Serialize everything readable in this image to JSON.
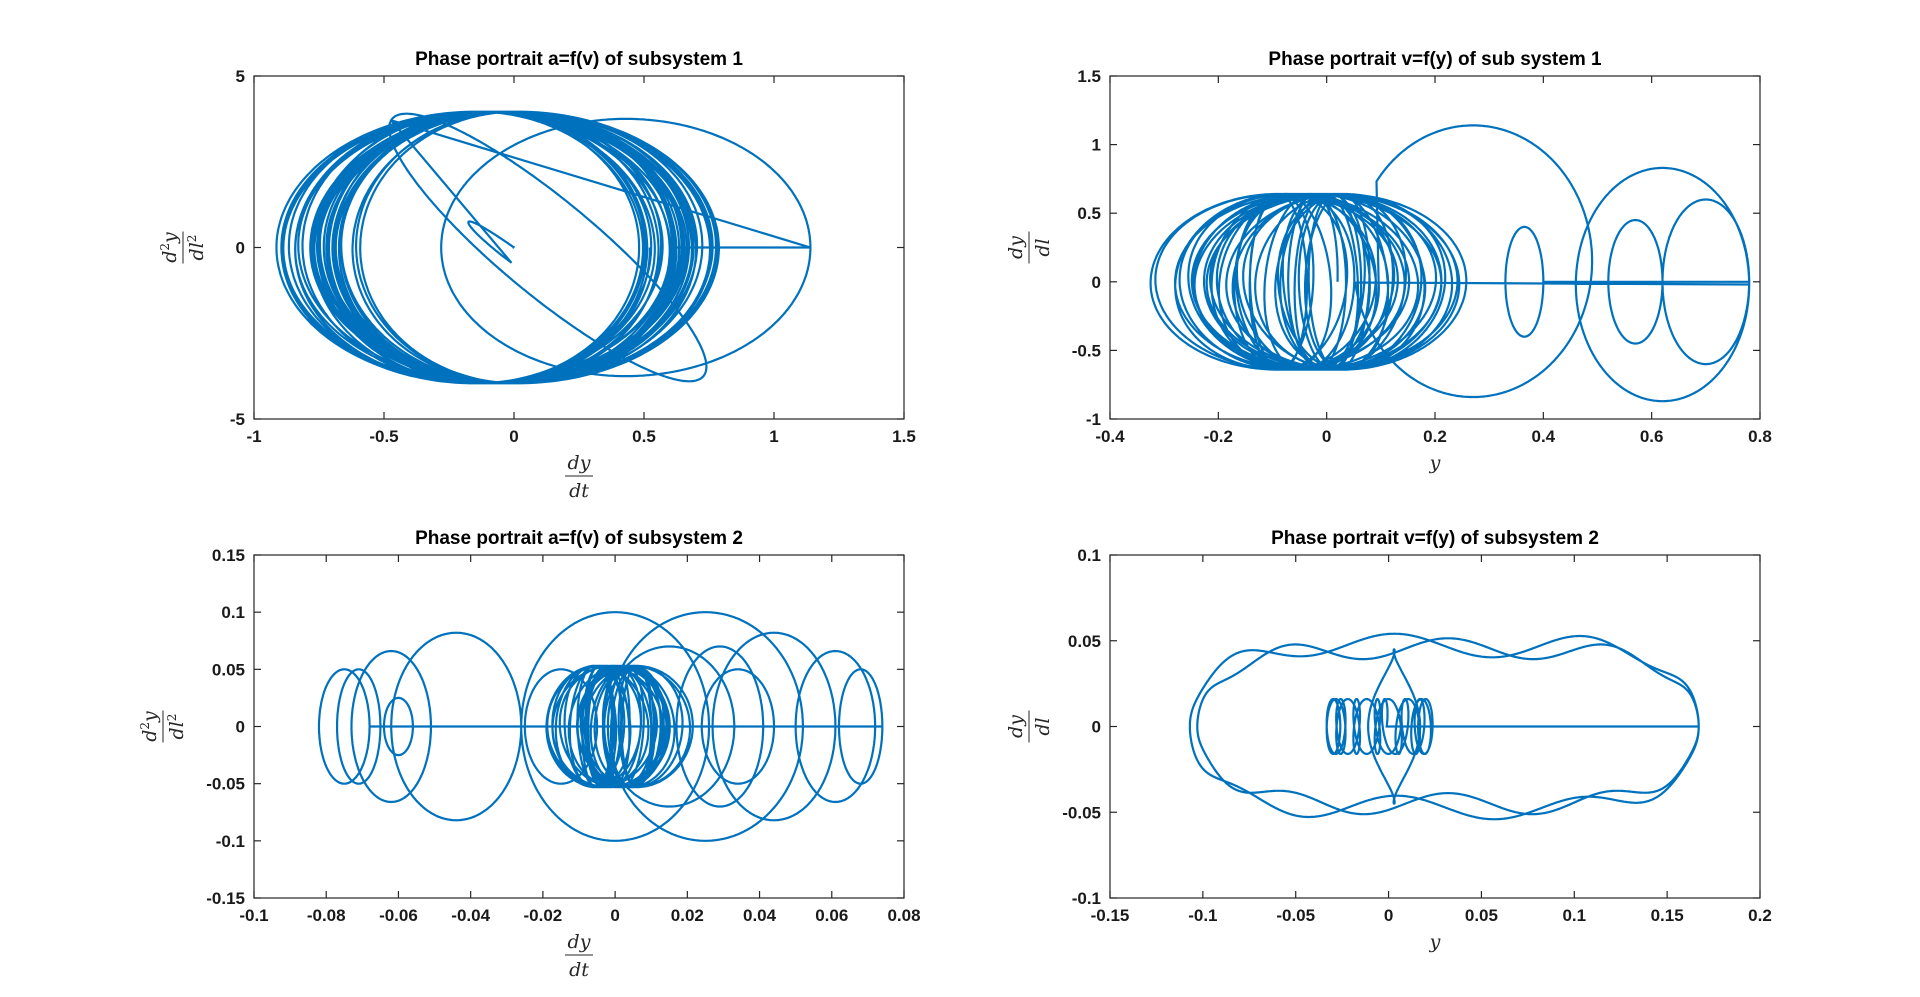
{
  "figure": {
    "line_color": "#0072BD"
  },
  "chart_data": [
    {
      "type": "line",
      "title": "Phase portrait a=f(v) of subsystem 1",
      "xlabel": {
        "num": "dy",
        "den": "dt"
      },
      "ylabel": {
        "num": "d",
        "num_sup": "2",
        "num_tail": "y",
        "den": "dl",
        "den_sup": "2"
      },
      "xlim": [
        -1,
        1.5
      ],
      "ylim": [
        -5,
        5
      ],
      "xticks": [
        "-1",
        "-0.5",
        "0",
        "0.5",
        "1",
        "1.5"
      ],
      "yticks": [
        "-5",
        "0",
        "5"
      ],
      "series_params": {
        "kind": "spiral-ring",
        "cx": -0.07,
        "rx_min": 0.6,
        "rx_max": 0.78,
        "ry": 3.97,
        "turns": 38,
        "start": [
          0,
          0
        ],
        "outer_loops": [
          [
            0.57,
            3.7,
            0.575,
            0.0
          ],
          [
            1.14,
            0.0,
            0.57,
            0.0
          ]
        ]
      }
    },
    {
      "type": "line",
      "title": "Phase portrait v=f(y) of sub system 1",
      "xlabel": {
        "num": "y",
        "den": ""
      },
      "ylabel": {
        "num": "dy",
        "den": "dl"
      },
      "xlim": [
        -0.4,
        0.8
      ],
      "ylim": [
        -1,
        1.5
      ],
      "xticks": [
        "-0.4",
        "-0.2",
        "0",
        "0.2",
        "0.4",
        "0.6",
        "0.8"
      ],
      "yticks": [
        "-1",
        "-0.5",
        "0",
        "0.5",
        "1",
        "1.5"
      ],
      "series_params": {
        "kind": "trochoid-ring",
        "cx": -0.05,
        "turns": 34
      }
    },
    {
      "type": "line",
      "title": "Phase portrait a=f(v) of subsystem 2",
      "xlabel": {
        "num": "dy",
        "den": "dt"
      },
      "ylabel": {
        "num": "d",
        "num_sup": "2",
        "num_tail": "y",
        "den": "dl",
        "den_sup": "2"
      },
      "xlim": [
        -0.1,
        0.08
      ],
      "ylim": [
        -0.15,
        0.15
      ],
      "xticks": [
        "-0.1",
        "-0.08",
        "-0.06",
        "-0.04",
        "-0.02",
        "0",
        "0.02",
        "0.04",
        "0.06",
        "0.08"
      ],
      "yticks": [
        "-0.15",
        "-0.1",
        "-0.05",
        "0",
        "0.05",
        "0.1",
        "0.15"
      ],
      "series_params": {
        "kind": "loops",
        "turns": 30
      }
    },
    {
      "type": "line",
      "title": "Phase portrait v=f(y) of subsystem 2",
      "xlabel": {
        "num": "y",
        "den": ""
      },
      "ylabel": {
        "num": "dy",
        "den": "dl"
      },
      "xlim": [
        -0.15,
        0.2
      ],
      "ylim": [
        -0.1,
        0.1
      ],
      "xticks": [
        "-0.15",
        "-0.1",
        "-0.05",
        "0",
        "0.05",
        "0.1",
        "0.15",
        "0.2"
      ],
      "yticks": [
        "-0.1",
        "-0.05",
        "0",
        "0.05",
        "0.1"
      ],
      "series_params": {
        "kind": "wavy-ring",
        "turns": 14
      }
    }
  ]
}
